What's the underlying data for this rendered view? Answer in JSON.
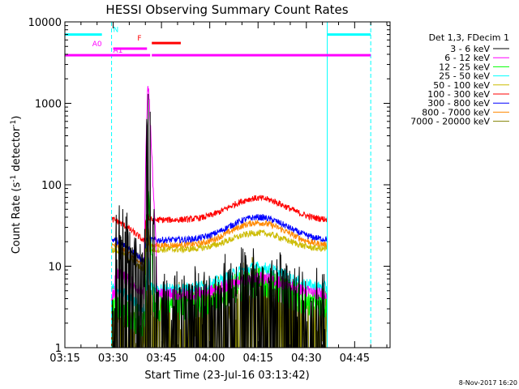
{
  "chart_data": {
    "type": "line",
    "title": "HESSI Observing Summary Count Rates",
    "xlabel": "Start Time (23-Jul-16 03:13:42)",
    "ylabel_parts": [
      "Count Rate (s",
      "-1",
      " detector",
      "-1",
      ")"
    ],
    "x_ticks": [
      "03:15",
      "03:30",
      "03:45",
      "04:00",
      "04:15",
      "04:30",
      "04:45"
    ],
    "x_tick_minutes": [
      15,
      30,
      45,
      60,
      75,
      90,
      105
    ],
    "xlim_minutes": [
      15,
      116
    ],
    "y_scale": "log",
    "ylim": [
      1,
      10000
    ],
    "y_ticks": [
      "1",
      "10",
      "100",
      "1000",
      "10000"
    ],
    "y_tick_values": [
      1,
      10,
      100,
      1000,
      10000
    ],
    "legend_title": "Det 1,3, FDecim 1",
    "legend_position": "right",
    "series": [
      {
        "name": "3 - 6 keV",
        "color": "#000000",
        "level": 2.2,
        "flare_peak": 600,
        "att_level": 14,
        "bump": 2.0
      },
      {
        "name": "6 - 12 keV",
        "color": "#ff00ff",
        "level": 4.5,
        "flare_peak": 1650,
        "att_level": 8.5,
        "bump": 1.6
      },
      {
        "name": "12 - 25 keV",
        "color": "#00ff00",
        "level": 3.3,
        "flare_peak": 85,
        "att_level": 3.3,
        "bump": 1.9
      },
      {
        "name": "25 - 50 keV",
        "color": "#00ffff",
        "level": 5.3,
        "flare_peak": 14,
        "att_level": 5.3,
        "bump": 1.8
      },
      {
        "name": "50 - 100 keV",
        "color": "#ccbb00",
        "level": 16,
        "flare_peak": 30,
        "att_level": 16,
        "bump": 1.6
      },
      {
        "name": "100 - 300 keV",
        "color": "#ff0000",
        "level": 37,
        "flare_peak": 45,
        "att_level": 37,
        "bump": 1.85
      },
      {
        "name": "300 - 800 keV",
        "color": "#0000ff",
        "level": 21,
        "flare_peak": 28,
        "att_level": 21,
        "bump": 1.9
      },
      {
        "name": "800 - 7000 keV",
        "color": "#ff8800",
        "level": 18,
        "flare_peak": 24,
        "att_level": 18,
        "bump": 1.9
      },
      {
        "name": "7000 - 20000 keV",
        "color": "#808000",
        "level": 1.5,
        "flare_peak": 2,
        "att_level": 1.5,
        "bump": 1.9
      }
    ],
    "flags": [
      {
        "label": "N",
        "color": "#00ffff",
        "level": 7000,
        "segments": [
          [
            15,
            26.5
          ],
          [
            96.5,
            110
          ]
        ],
        "label_at": 30
      },
      {
        "label": "F",
        "color": "#ff0000",
        "level": 5500,
        "segments": [
          [
            42,
            51
          ]
        ],
        "label_at": 37.5
      },
      {
        "label": "A0",
        "color": "#ff00ff",
        "level": 4700,
        "segments": [
          [
            30,
            40.5
          ]
        ],
        "label_at": 23.5
      },
      {
        "label": "A1",
        "color": "#ff00ff",
        "level": 3900,
        "segments": [
          [
            15,
            41.5
          ],
          [
            42,
            110
          ]
        ],
        "label_at": 30
      }
    ],
    "saa_intervals": [
      [
        15,
        29.5
      ],
      [
        96.5,
        110
      ]
    ],
    "flare_time": 41
  },
  "footer_date": "8-Nov-2017 16:20"
}
